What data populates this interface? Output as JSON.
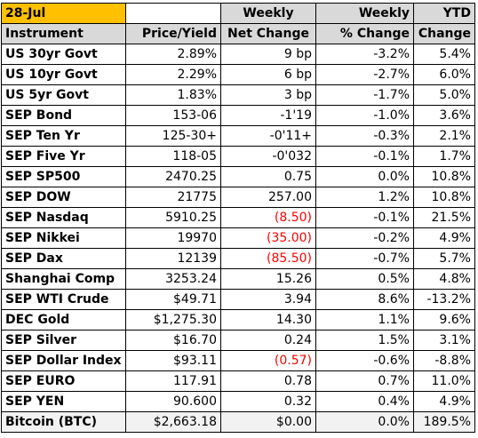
{
  "header": {
    "date": "28-Jul",
    "row1": {
      "net_change": "Weekly",
      "pct_change": "Weekly",
      "ytd": "YTD"
    },
    "row2": {
      "instrument": "Instrument",
      "price": "Price/Yield",
      "net_change": "Net Change",
      "pct_change": "% Change",
      "ytd": "Change"
    }
  },
  "rows": [
    {
      "instrument": "US 30yr Govt",
      "price": "2.89%",
      "net": "9 bp",
      "pct": "-3.2%",
      "ytd": "5.4%",
      "net_negative": false
    },
    {
      "instrument": "US 10yr Govt",
      "price": "2.29%",
      "net": "6 bp",
      "pct": "-2.7%",
      "ytd": "6.0%",
      "net_negative": false
    },
    {
      "instrument": "US 5yr   Govt",
      "price": "1.83%",
      "net": "3 bp",
      "pct": "-1.7%",
      "ytd": "5.0%",
      "net_negative": false
    },
    {
      "instrument": "SEP Bond",
      "price": "153-06",
      "net": "-1'19",
      "pct": "-1.0%",
      "ytd": "3.6%",
      "net_negative": false
    },
    {
      "instrument": "SEP Ten Yr",
      "price": "125-30+",
      "net": "-0'11+",
      "pct": "-0.3%",
      "ytd": "2.1%",
      "net_negative": false
    },
    {
      "instrument": "SEP Five Yr",
      "price": "118-05",
      "net": "-0'032",
      "pct": "-0.1%",
      "ytd": "1.7%",
      "net_negative": false
    },
    {
      "instrument": "SEP SP500",
      "price": "2470.25",
      "net": "0.75",
      "pct": "0.0%",
      "ytd": "10.8%",
      "net_negative": false
    },
    {
      "instrument": "SEP DOW",
      "price": "21775",
      "net": "257.00",
      "pct": "1.2%",
      "ytd": "10.8%",
      "net_negative": false
    },
    {
      "instrument": "SEP Nasdaq",
      "price": "5910.25",
      "net": "(8.50)",
      "pct": "-0.1%",
      "ytd": "21.5%",
      "net_negative": true
    },
    {
      "instrument": "SEP Nikkei",
      "price": "19970",
      "net": "(35.00)",
      "pct": "-0.2%",
      "ytd": "4.9%",
      "net_negative": true
    },
    {
      "instrument": "SEP Dax",
      "price": "12139",
      "net": "(85.50)",
      "pct": "-0.7%",
      "ytd": "5.7%",
      "net_negative": true
    },
    {
      "instrument": "Shanghai Comp",
      "price": "3253.24",
      "net": "15.26",
      "pct": "0.5%",
      "ytd": "4.8%",
      "net_negative": false
    },
    {
      "instrument": "SEP WTI Crude",
      "price": "$49.71",
      "net": "3.94",
      "pct": "8.6%",
      "ytd": "-13.2%",
      "net_negative": false
    },
    {
      "instrument": "DEC Gold",
      "price": "$1,275.30",
      "net": "14.30",
      "pct": "1.1%",
      "ytd": "9.6%",
      "net_negative": false
    },
    {
      "instrument": "SEP Silver",
      "price": "$16.70",
      "net": "0.24",
      "pct": "1.5%",
      "ytd": "3.1%",
      "net_negative": false
    },
    {
      "instrument": "SEP Dollar Index",
      "price": "$93.11",
      "net": "(0.57)",
      "pct": "-0.6%",
      "ytd": "-8.8%",
      "net_negative": true
    },
    {
      "instrument": "SEP EURO",
      "price": "117.91",
      "net": "0.78",
      "pct": "0.7%",
      "ytd": "11.0%",
      "net_negative": false
    },
    {
      "instrument": "SEP YEN",
      "price": "90.600",
      "net": "0.32",
      "pct": "0.4%",
      "ytd": "4.9%",
      "net_negative": false
    },
    {
      "instrument": "Bitcoin (BTC)",
      "price": "$2,663.18",
      "net": "$0.00",
      "pct": "0.0%",
      "ytd": "189.5%",
      "net_negative": false
    }
  ],
  "colors": {
    "date_fill": "#ffc000",
    "header_fill": "#d9d9d9",
    "negative_text": "#ff0000",
    "last_row_fill": "#f2f2f2"
  }
}
